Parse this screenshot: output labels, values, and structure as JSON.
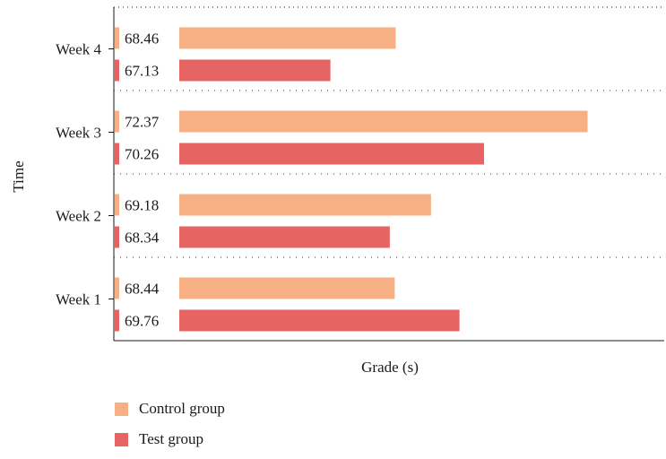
{
  "chart_data": {
    "type": "bar",
    "orientation": "horizontal",
    "ylabel": "Time",
    "xlabel": "Grade (s)",
    "categories": [
      "Week 4",
      "Week 3",
      "Week 2",
      "Week 1"
    ],
    "series": [
      {
        "name": "Control group",
        "color": "#f7b084",
        "values": [
          68.46,
          72.37,
          69.18,
          68.44
        ]
      },
      {
        "name": "Test group",
        "color": "#e66464",
        "values": [
          67.13,
          70.26,
          68.34,
          69.76
        ]
      }
    ],
    "grid": "dotted separators between categories",
    "legend_position": "bottom-left"
  }
}
